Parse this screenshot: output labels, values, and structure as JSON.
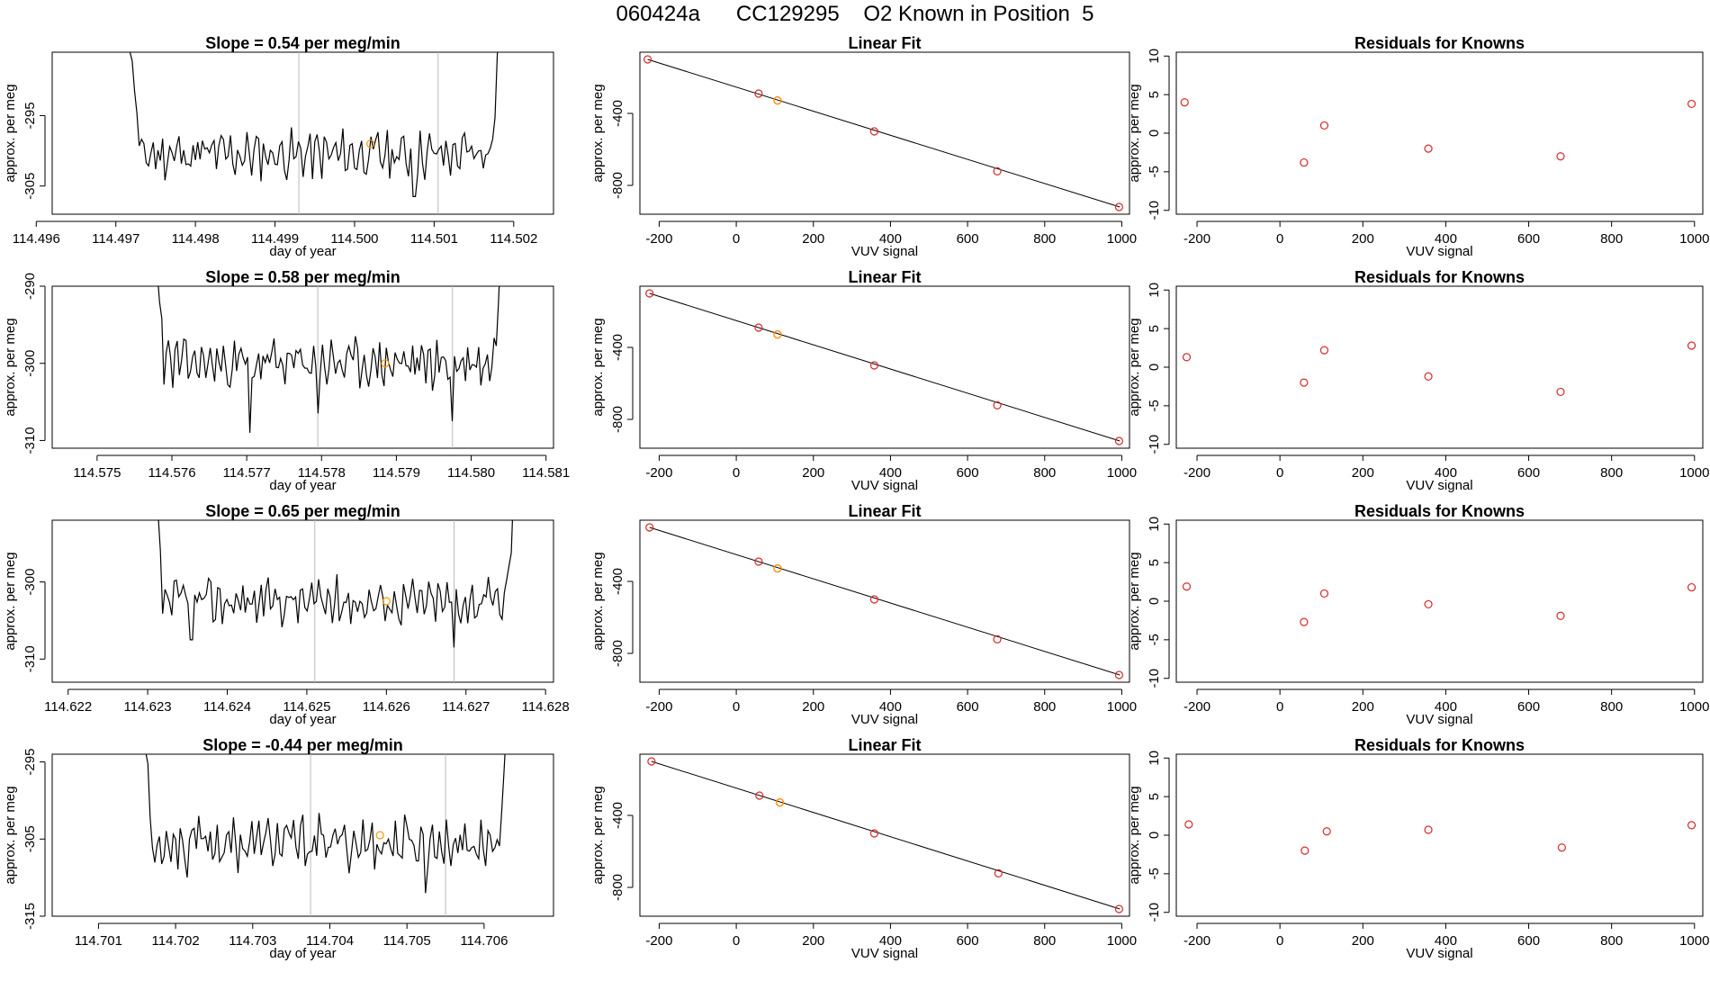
{
  "page_title": "060424a      CC129295    O2 Known in Position  5",
  "colors": {
    "known": "#d62728",
    "sample": "#ff9900",
    "line": "#000000",
    "marker_line": "#bbbbbb"
  },
  "chart_data": [
    {
      "row": 1,
      "time_series": {
        "type": "line",
        "title": "Slope =  0.54  per meg/min",
        "xlabel": "day of year",
        "ylabel": "approx. per meg",
        "xlim": [
          114.4962,
          114.5025
        ],
        "ylim": [
          -309,
          -286
        ],
        "xticks": [
          114.496,
          114.497,
          114.498,
          114.499,
          114.5,
          114.501,
          114.502
        ],
        "xtick_labels": [
          "114.496",
          "114.497",
          "114.498",
          "114.499",
          "114.500",
          "114.501",
          "114.502"
        ],
        "yticks": [
          -295,
          -305
        ],
        "ytick_labels": [
          "-295",
          "-305"
        ],
        "x_start": 114.497,
        "x_end": 114.502,
        "baseline": -300.5,
        "noise": 2.6,
        "seed": 11,
        "dips": [
          [
            114.50075,
            -306.5
          ]
        ],
        "vlines": [
          114.4993,
          114.50105
        ],
        "sample_point": {
          "x": 114.5002,
          "y": -299.0
        }
      },
      "linear_fit": {
        "type": "scatter",
        "title": "Linear Fit",
        "xlabel": "VUV signal",
        "ylabel": "approx. per meg",
        "xlim": [
          -250,
          1020
        ],
        "ylim": [
          -960,
          -60
        ],
        "xticks": [
          -200,
          0,
          200,
          400,
          600,
          800,
          1000
        ],
        "xtick_labels": [
          "-200",
          "0",
          "200",
          "400",
          "600",
          "800",
          "1000"
        ],
        "yticks": [
          -400,
          -800
        ],
        "ytick_labels": [
          "-400",
          "-800"
        ],
        "line": [
          [
            -230,
            -100
          ],
          [
            995,
            -920
          ]
        ],
        "points": [
          [
            -230,
            -100
          ],
          [
            58,
            -290
          ],
          [
            107,
            -328
          ],
          [
            358,
            -500
          ],
          [
            677,
            -722
          ],
          [
            993,
            -920
          ]
        ],
        "sample_point": [
          107,
          -328
        ]
      },
      "residuals": {
        "type": "scatter",
        "title": "Residuals for Knowns",
        "xlabel": "VUV signal",
        "ylabel": "approx. per meg",
        "xlim": [
          -250,
          1020
        ],
        "ylim": [
          -10.5,
          10.5
        ],
        "xticks": [
          -200,
          0,
          200,
          400,
          600,
          800,
          1000
        ],
        "xtick_labels": [
          "-200",
          "0",
          "200",
          "400",
          "600",
          "800",
          "1000"
        ],
        "yticks": [
          10,
          5,
          0,
          -5,
          -10
        ],
        "ytick_labels": [
          "10",
          "5",
          "0",
          "-5",
          "-10"
        ],
        "points": [
          [
            -230,
            4.0
          ],
          [
            58,
            -3.8
          ],
          [
            107,
            1.0
          ],
          [
            358,
            -2.0
          ],
          [
            677,
            -3.0
          ],
          [
            993,
            3.8
          ]
        ]
      }
    },
    {
      "row": 2,
      "time_series": {
        "type": "line",
        "title": "Slope =  0.58  per meg/min",
        "xlabel": "day of year",
        "ylabel": "approx. per meg",
        "xlim": [
          114.5744,
          114.5811
        ],
        "ylim": [
          -311,
          -290
        ],
        "xticks": [
          114.575,
          114.576,
          114.577,
          114.578,
          114.579,
          114.58,
          114.581
        ],
        "xtick_labels": [
          "114.575",
          "114.576",
          "114.577",
          "114.578",
          "114.579",
          "114.580",
          "114.581"
        ],
        "yticks": [
          -290,
          -300,
          -310
        ],
        "ytick_labels": [
          "-290",
          "-300",
          "-310"
        ],
        "x_start": 114.5756,
        "x_end": 114.5806,
        "baseline": -300.0,
        "noise": 2.4,
        "seed": 23,
        "dips": [
          [
            114.57705,
            -309.0
          ],
          [
            114.57795,
            -306.5
          ],
          [
            114.57975,
            -307.5
          ]
        ],
        "vlines": [
          114.57795,
          114.57975
        ],
        "sample_point": {
          "x": 114.57885,
          "y": -300.0
        }
      },
      "linear_fit": {
        "type": "scatter",
        "title": "Linear Fit",
        "xlabel": "VUV signal",
        "ylabel": "approx. per meg",
        "xlim": [
          -250,
          1020
        ],
        "ylim": [
          -960,
          -60
        ],
        "xticks": [
          -200,
          0,
          200,
          400,
          600,
          800,
          1000
        ],
        "xtick_labels": [
          "-200",
          "0",
          "200",
          "400",
          "600",
          "800",
          "1000"
        ],
        "yticks": [
          -400,
          -800
        ],
        "ytick_labels": [
          "-400",
          "-800"
        ],
        "line": [
          [
            -225,
            -100
          ],
          [
            995,
            -920
          ]
        ],
        "points": [
          [
            -225,
            -100
          ],
          [
            58,
            -290
          ],
          [
            107,
            -328
          ],
          [
            358,
            -500
          ],
          [
            677,
            -722
          ],
          [
            993,
            -920
          ]
        ],
        "sample_point": [
          107,
          -328
        ]
      },
      "residuals": {
        "type": "scatter",
        "title": "Residuals for Knowns",
        "xlabel": "VUV signal",
        "ylabel": "approx. per meg",
        "xlim": [
          -250,
          1020
        ],
        "ylim": [
          -10.5,
          10.5
        ],
        "xticks": [
          -200,
          0,
          200,
          400,
          600,
          800,
          1000
        ],
        "xtick_labels": [
          "-200",
          "0",
          "200",
          "400",
          "600",
          "800",
          "1000"
        ],
        "yticks": [
          10,
          5,
          0,
          -5,
          -10
        ],
        "ytick_labels": [
          "10",
          "5",
          "0",
          "-5",
          "-10"
        ],
        "points": [
          [
            -225,
            1.3
          ],
          [
            58,
            -2.0
          ],
          [
            107,
            2.2
          ],
          [
            358,
            -1.2
          ],
          [
            677,
            -3.2
          ],
          [
            993,
            2.8
          ]
        ]
      }
    },
    {
      "row": 3,
      "time_series": {
        "type": "line",
        "title": "Slope =  0.65  per meg/min",
        "xlabel": "day of year",
        "ylabel": "approx. per meg",
        "xlim": [
          114.6218,
          114.6281
        ],
        "ylim": [
          -313,
          -292
        ],
        "xticks": [
          114.622,
          114.623,
          114.624,
          114.625,
          114.626,
          114.627,
          114.628
        ],
        "xtick_labels": [
          "114.622",
          "114.623",
          "114.624",
          "114.625",
          "114.626",
          "114.627",
          "114.628"
        ],
        "yticks": [
          -300,
          -310
        ],
        "ytick_labels": [
          "-300",
          "-310"
        ],
        "x_start": 114.6229,
        "x_end": 114.6278,
        "baseline": -302.5,
        "noise": 2.3,
        "seed": 37,
        "dips": [
          [
            114.62355,
            -307.5
          ],
          [
            114.62685,
            -308.5
          ]
        ],
        "vlines": [
          114.6251,
          114.62685
        ],
        "sample_point": {
          "x": 114.626,
          "y": -302.5
        }
      },
      "linear_fit": {
        "type": "scatter",
        "title": "Linear Fit",
        "xlabel": "VUV signal",
        "ylabel": "approx. per meg",
        "xlim": [
          -250,
          1020
        ],
        "ylim": [
          -960,
          -60
        ],
        "xticks": [
          -200,
          0,
          200,
          400,
          600,
          800,
          1000
        ],
        "xtick_labels": [
          "-200",
          "0",
          "200",
          "400",
          "600",
          "800",
          "1000"
        ],
        "yticks": [
          -400,
          -800
        ],
        "ytick_labels": [
          "-400",
          "-800"
        ],
        "line": [
          [
            -225,
            -100
          ],
          [
            995,
            -920
          ]
        ],
        "points": [
          [
            -225,
            -100
          ],
          [
            58,
            -290
          ],
          [
            107,
            -328
          ],
          [
            358,
            -500
          ],
          [
            677,
            -722
          ],
          [
            993,
            -920
          ]
        ],
        "sample_point": [
          107,
          -328
        ]
      },
      "residuals": {
        "type": "scatter",
        "title": "Residuals for Knowns",
        "xlabel": "VUV signal",
        "ylabel": "approx. per meg",
        "xlim": [
          -250,
          1020
        ],
        "ylim": [
          -10.5,
          10.5
        ],
        "xticks": [
          -200,
          0,
          200,
          400,
          600,
          800,
          1000
        ],
        "xtick_labels": [
          "-200",
          "0",
          "200",
          "400",
          "600",
          "800",
          "1000"
        ],
        "yticks": [
          10,
          5,
          0,
          -5,
          -10
        ],
        "ytick_labels": [
          "10",
          "5",
          "0",
          "-5",
          "-10"
        ],
        "points": [
          [
            -225,
            1.9
          ],
          [
            58,
            -2.7
          ],
          [
            107,
            1.0
          ],
          [
            358,
            -0.4
          ],
          [
            677,
            -1.9
          ],
          [
            993,
            1.8
          ]
        ]
      }
    },
    {
      "row": 4,
      "time_series": {
        "type": "line",
        "title": "Slope =  -0.44  per meg/min",
        "xlabel": "day of year",
        "ylabel": "approx. per meg",
        "xlim": [
          114.7004,
          114.7069
        ],
        "ylim": [
          -315,
          -294
        ],
        "xticks": [
          114.701,
          114.702,
          114.703,
          114.704,
          114.705,
          114.706
        ],
        "xtick_labels": [
          "114.701",
          "114.702",
          "114.703",
          "114.704",
          "114.705",
          "114.706"
        ],
        "yticks": [
          -295,
          -305,
          -315
        ],
        "ytick_labels": [
          "-295",
          "-305",
          "-315"
        ],
        "x_start": 114.7014,
        "x_end": 114.7065,
        "baseline": -305.5,
        "noise": 2.6,
        "seed": 53,
        "dips": [
          [
            114.70215,
            -310.0
          ],
          [
            114.70525,
            -312.0
          ]
        ],
        "vlines": [
          114.70375,
          114.7055
        ],
        "sample_point": {
          "x": 114.70465,
          "y": -304.5
        }
      },
      "linear_fit": {
        "type": "scatter",
        "title": "Linear Fit",
        "xlabel": "VUV signal",
        "ylabel": "approx. per meg",
        "xlim": [
          -250,
          1020
        ],
        "ylim": [
          -960,
          -60
        ],
        "xticks": [
          -200,
          0,
          200,
          400,
          600,
          800,
          1000
        ],
        "xtick_labels": [
          "-200",
          "0",
          "200",
          "400",
          "600",
          "800",
          "1000"
        ],
        "yticks": [
          -400,
          -800
        ],
        "ytick_labels": [
          "-400",
          "-800"
        ],
        "line": [
          [
            -220,
            -100
          ],
          [
            995,
            -920
          ]
        ],
        "points": [
          [
            -220,
            -100
          ],
          [
            60,
            -290
          ],
          [
            113,
            -328
          ],
          [
            358,
            -500
          ],
          [
            680,
            -722
          ],
          [
            993,
            -920
          ]
        ],
        "sample_point": [
          113,
          -328
        ]
      },
      "residuals": {
        "type": "scatter",
        "title": "Residuals for Knowns",
        "xlabel": "VUV signal",
        "ylabel": "approx. per meg",
        "xlim": [
          -250,
          1020
        ],
        "ylim": [
          -10.5,
          10.5
        ],
        "xticks": [
          -200,
          0,
          200,
          400,
          600,
          800,
          1000
        ],
        "xtick_labels": [
          "-200",
          "0",
          "200",
          "400",
          "600",
          "800",
          "1000"
        ],
        "yticks": [
          10,
          5,
          0,
          -5,
          -10
        ],
        "ytick_labels": [
          "10",
          "5",
          "0",
          "-5",
          "-10"
        ],
        "points": [
          [
            -220,
            1.4
          ],
          [
            60,
            -2.0
          ],
          [
            113,
            0.5
          ],
          [
            358,
            0.7
          ],
          [
            680,
            -1.6
          ],
          [
            993,
            1.3
          ]
        ]
      }
    }
  ]
}
